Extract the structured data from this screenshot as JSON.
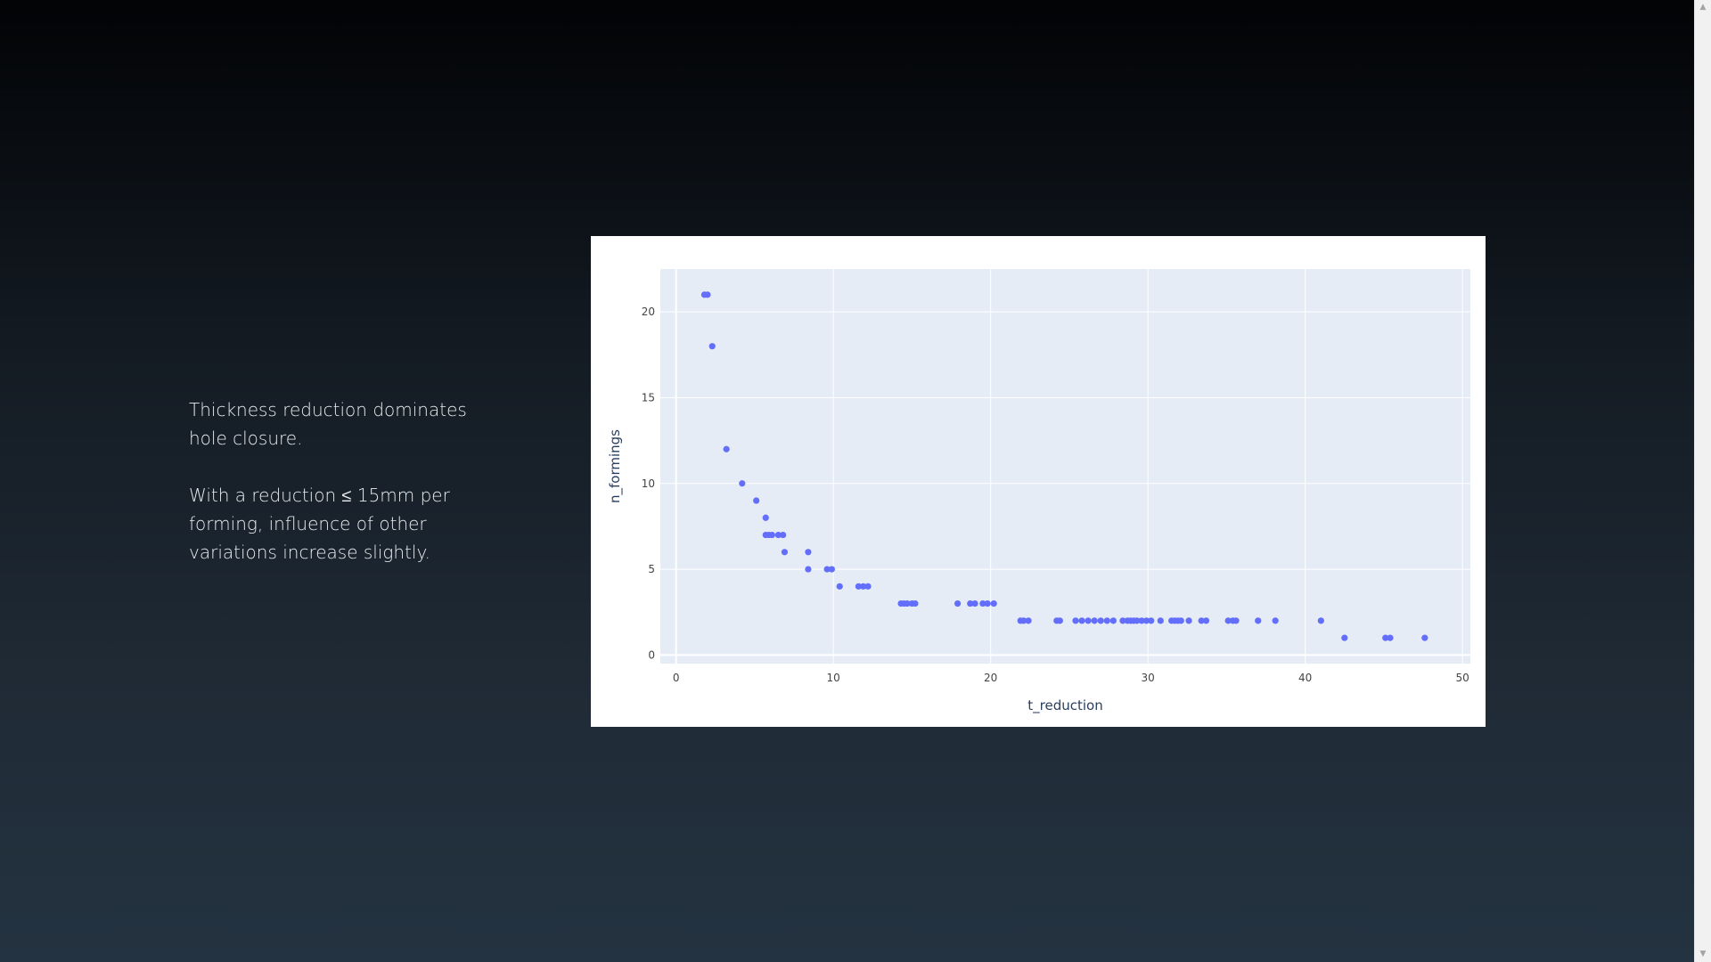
{
  "slide": {
    "paragraphs": [
      "Thickness reduction dominates hole closure.",
      "With a reduction ≤ 15mm per forming, influence of other variations increase slightly."
    ]
  },
  "scrollbar": {
    "up_icon": "chevron-up-icon",
    "down_icon": "chevron-down-icon",
    "up_glyph": "▲",
    "down_glyph": "▼"
  },
  "chart_data": {
    "type": "scatter",
    "xlabel": "t_reduction",
    "ylabel": "n_formings",
    "xlim": [
      -1,
      50.5
    ],
    "ylim": [
      -0.5,
      22.5
    ],
    "xticks": [
      0,
      10,
      20,
      30,
      40,
      50
    ],
    "yticks": [
      0,
      5,
      10,
      15,
      20
    ],
    "grid": true,
    "colors": {
      "marker": "#636efa",
      "plot_bg": "#e5ecf6",
      "grid": "#ffffff"
    },
    "points": [
      [
        1.8,
        21
      ],
      [
        2.0,
        21
      ],
      [
        2.3,
        18
      ],
      [
        3.2,
        12
      ],
      [
        4.2,
        10
      ],
      [
        5.1,
        9
      ],
      [
        5.7,
        8
      ],
      [
        5.7,
        7
      ],
      [
        5.9,
        7
      ],
      [
        6.1,
        7
      ],
      [
        6.5,
        7
      ],
      [
        6.8,
        7
      ],
      [
        6.9,
        6
      ],
      [
        8.4,
        6
      ],
      [
        8.4,
        5
      ],
      [
        9.6,
        5
      ],
      [
        9.9,
        5
      ],
      [
        10.4,
        4
      ],
      [
        11.6,
        4
      ],
      [
        11.9,
        4
      ],
      [
        12.2,
        4
      ],
      [
        14.3,
        3
      ],
      [
        14.5,
        3
      ],
      [
        14.7,
        3
      ],
      [
        15.0,
        3
      ],
      [
        15.2,
        3
      ],
      [
        17.9,
        3
      ],
      [
        18.7,
        3
      ],
      [
        19.0,
        3
      ],
      [
        19.5,
        3
      ],
      [
        19.8,
        3
      ],
      [
        20.2,
        3
      ],
      [
        21.9,
        2
      ],
      [
        22.1,
        2
      ],
      [
        22.4,
        2
      ],
      [
        24.2,
        2
      ],
      [
        24.4,
        2
      ],
      [
        25.4,
        2
      ],
      [
        25.8,
        2
      ],
      [
        26.2,
        2
      ],
      [
        26.6,
        2
      ],
      [
        27.0,
        2
      ],
      [
        27.4,
        2
      ],
      [
        27.8,
        2
      ],
      [
        28.4,
        2
      ],
      [
        28.7,
        2
      ],
      [
        28.9,
        2
      ],
      [
        29.1,
        2
      ],
      [
        29.3,
        2
      ],
      [
        29.6,
        2
      ],
      [
        29.9,
        2
      ],
      [
        30.2,
        2
      ],
      [
        30.8,
        2
      ],
      [
        31.5,
        2
      ],
      [
        31.7,
        2
      ],
      [
        31.9,
        2
      ],
      [
        32.1,
        2
      ],
      [
        32.6,
        2
      ],
      [
        33.4,
        2
      ],
      [
        33.7,
        2
      ],
      [
        35.1,
        2
      ],
      [
        35.4,
        2
      ],
      [
        35.6,
        2
      ],
      [
        37.0,
        2
      ],
      [
        38.1,
        2
      ],
      [
        41.0,
        2
      ],
      [
        42.5,
        1
      ],
      [
        45.1,
        1
      ],
      [
        45.4,
        1
      ],
      [
        47.6,
        1
      ]
    ]
  }
}
